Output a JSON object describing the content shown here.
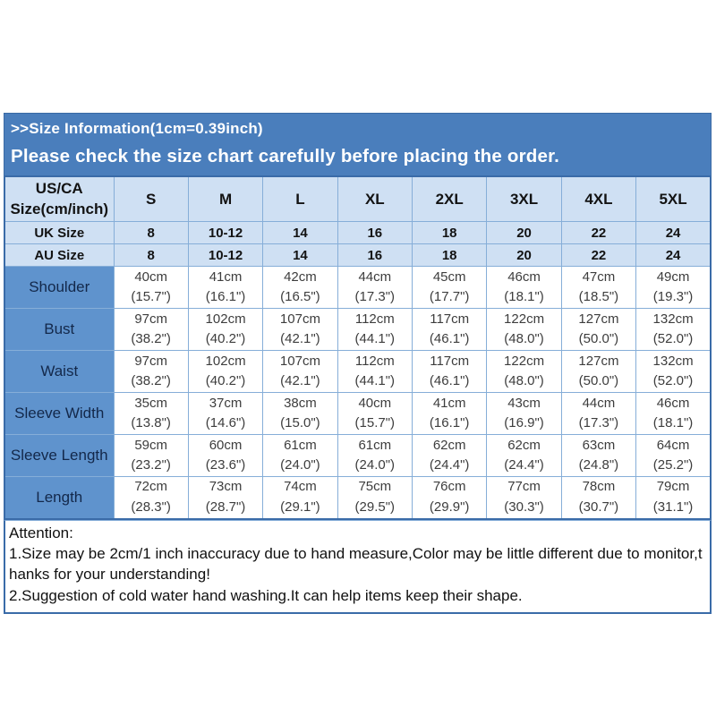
{
  "banner": {
    "title": ">>Size Information(1cm=0.39inch)",
    "subtitle": "Please check the size chart carefully before placing the order."
  },
  "size_chart": {
    "corner_header": "US/CA\nSize(cm/inch)",
    "columns": [
      "S",
      "M",
      "L",
      "XL",
      "2XL",
      "3XL",
      "4XL",
      "5XL"
    ],
    "rows": [
      {
        "label": "UK Size",
        "values": [
          "8",
          "10-12",
          "14",
          "16",
          "18",
          "20",
          "22",
          "24"
        ]
      },
      {
        "label": "AU Size",
        "values": [
          "8",
          "10-12",
          "14",
          "16",
          "18",
          "20",
          "22",
          "24"
        ]
      },
      {
        "label": "Shoulder",
        "values": [
          "40cm\n(15.7\")",
          "41cm\n(16.1\")",
          "42cm\n(16.5\")",
          "44cm\n(17.3\")",
          "45cm\n(17.7\")",
          "46cm\n(18.1\")",
          "47cm\n(18.5\")",
          "49cm\n(19.3\")"
        ]
      },
      {
        "label": "Bust",
        "values": [
          "97cm\n(38.2\")",
          "102cm\n(40.2\")",
          "107cm\n(42.1\")",
          "112cm\n(44.1\")",
          "117cm\n(46.1\")",
          "122cm\n(48.0\")",
          "127cm\n(50.0\")",
          "132cm\n(52.0\")"
        ]
      },
      {
        "label": "Waist",
        "values": [
          "97cm\n(38.2\")",
          "102cm\n(40.2\")",
          "107cm\n(42.1\")",
          "112cm\n(44.1\")",
          "117cm\n(46.1\")",
          "122cm\n(48.0\")",
          "127cm\n(50.0\")",
          "132cm\n(52.0\")"
        ]
      },
      {
        "label": "Sleeve Width",
        "values": [
          "35cm\n(13.8\")",
          "37cm\n(14.6\")",
          "38cm\n(15.0\")",
          "40cm\n(15.7\")",
          "41cm\n(16.1\")",
          "43cm\n(16.9\")",
          "44cm\n(17.3\")",
          "46cm\n(18.1\")"
        ]
      },
      {
        "label": "Sleeve Length",
        "values": [
          "59cm\n(23.2\")",
          "60cm\n(23.6\")",
          "61cm\n(24.0\")",
          "61cm\n(24.0\")",
          "62cm\n(24.4\")",
          "62cm\n(24.4\")",
          "63cm\n(24.8\")",
          "64cm\n(25.2\")"
        ]
      },
      {
        "label": "Length",
        "values": [
          "72cm\n(28.3\")",
          "73cm\n(28.7\")",
          "74cm\n(29.1\")",
          "75cm\n(29.5\")",
          "76cm\n(29.9\")",
          "77cm\n(30.3\")",
          "78cm\n(30.7\")",
          "79cm\n(31.1\")"
        ]
      }
    ]
  },
  "attention": {
    "title": "Attention:",
    "note1": "1.Size may be 2cm/1 inch inaccuracy due to hand measure,Color may be little different due to monitor,thanks for your understanding!",
    "note2": "2.Suggestion of cold water hand washing.It can help items keep their shape."
  },
  "colors": {
    "banner_bg": "#4a7ebc",
    "light_row_bg": "#cfe0f3",
    "label_column_bg": "#5f93cd",
    "inner_border": "#86aed8",
    "outer_border": "#3a6ba8"
  }
}
